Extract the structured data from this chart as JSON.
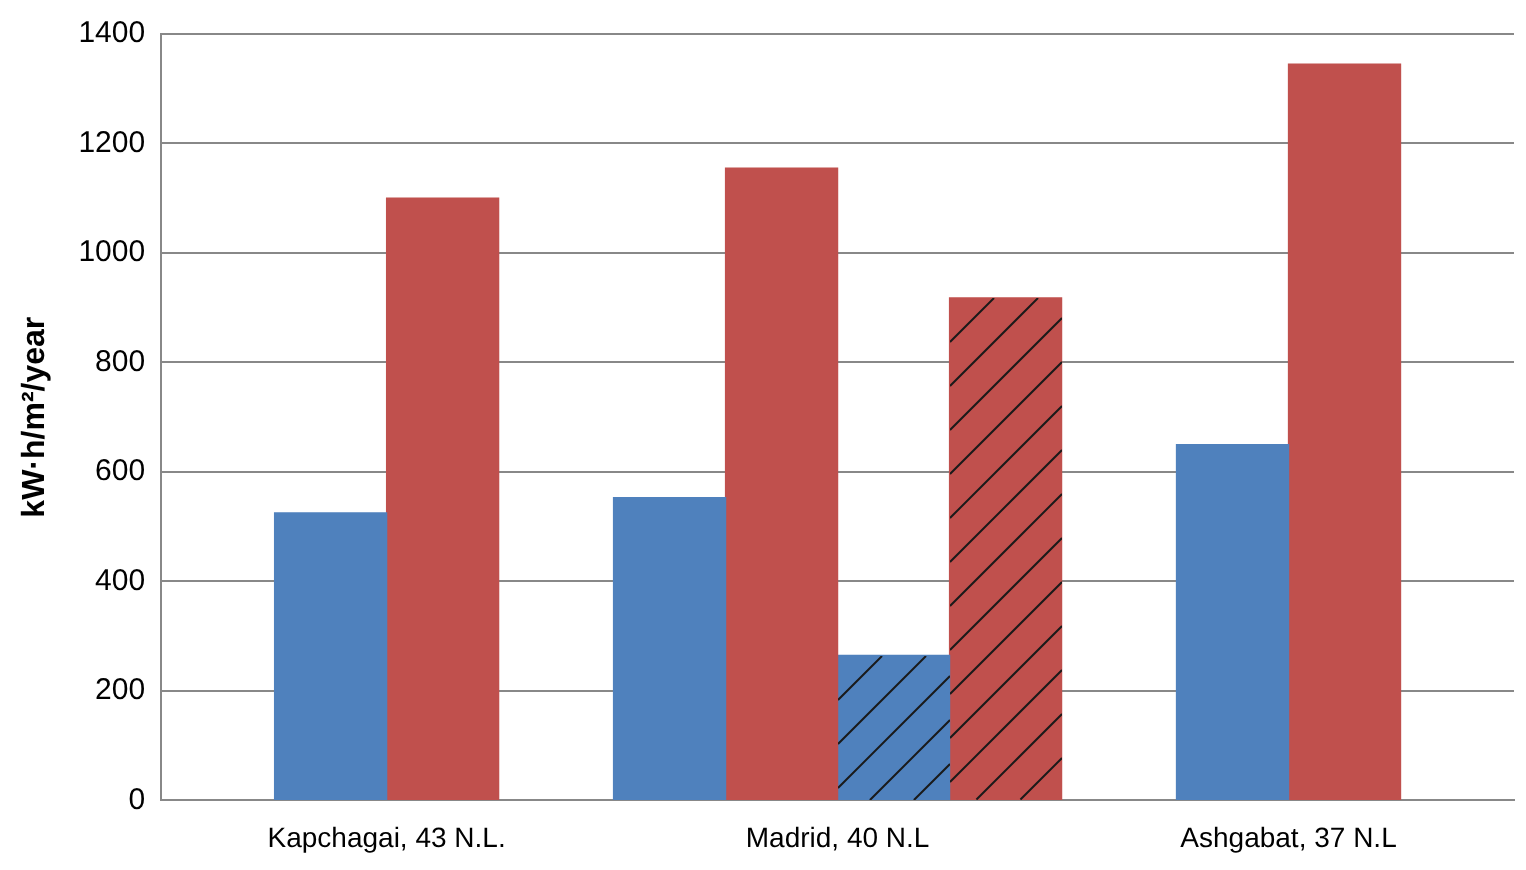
{
  "chart_data": {
    "type": "bar",
    "ylabel": "kW·h/m²/year",
    "categories": [
      "Kapchagai, 43 N.L.",
      "Madrid, 40 N.L",
      "Ashgabat, 37 N.L"
    ],
    "series": [
      {
        "color": "#4f81bd",
        "values": [
          525,
          553,
          650
        ]
      },
      {
        "color": "#c0504d",
        "values": [
          1100,
          1155,
          1345
        ]
      },
      {
        "color": "#4f81bd",
        "values": [
          null,
          265,
          null
        ]
      },
      {
        "color": "#c0504d",
        "values": [
          null,
          918,
          null
        ]
      }
    ],
    "ylim": [
      0,
      1400
    ],
    "yticks": [
      0,
      200,
      400,
      600,
      800,
      1000,
      1200,
      1400
    ],
    "grid": "y",
    "legend": false
  }
}
